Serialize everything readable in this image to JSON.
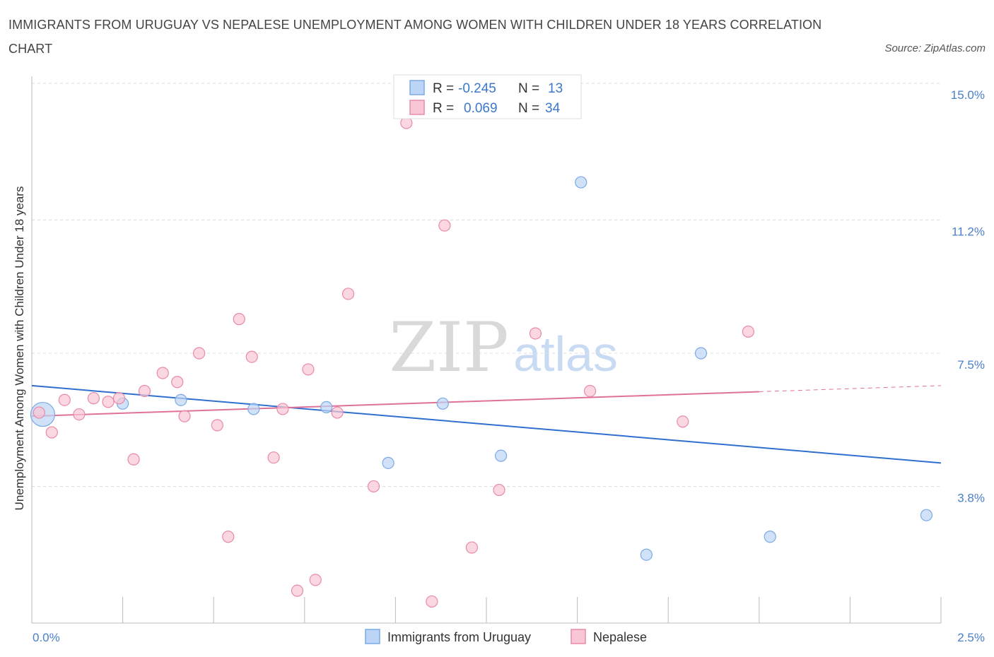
{
  "title": "IMMIGRANTS FROM URUGUAY VS NEPALESE UNEMPLOYMENT AMONG WOMEN WITH CHILDREN UNDER 18 YEARS CORRELATION CHART",
  "source": "Source: ZipAtlas.com",
  "watermark": {
    "zip": "ZIP",
    "atlas": "atlas"
  },
  "colors": {
    "blue": "#7aaae6",
    "blue_fill": "#bcd4f5",
    "blue_line": "#2f6fce",
    "pink": "#e88aa6",
    "pink_fill": "#f8c6d4",
    "pink_line": "#e0729a",
    "tick_label": "#4a7fc9"
  },
  "legend_top": [
    {
      "r_label": "R =",
      "r_value": "-0.245",
      "n_label": "N =",
      "n_value": "13",
      "color": "blue"
    },
    {
      "r_label": "R =",
      "r_value": "0.069",
      "n_label": "N =",
      "n_value": "34",
      "color": "pink"
    }
  ],
  "legend_bottom": [
    {
      "label": "Immigrants from Uruguay",
      "color": "blue"
    },
    {
      "label": "Nepalese",
      "color": "pink"
    }
  ],
  "chart_data": {
    "type": "scatter",
    "title": "IMMIGRANTS FROM URUGUAY VS NEPALESE UNEMPLOYMENT AMONG WOMEN WITH CHILDREN UNDER 18 YEARS CORRELATION CHART",
    "xlabel": "",
    "ylabel": "Unemployment Among Women with Children Under 18 years",
    "xlim": [
      0,
      2.5
    ],
    "ylim": [
      0,
      15.0
    ],
    "x_tick_labels": [
      "0.0%",
      "2.5%"
    ],
    "y_ticks": [
      3.8,
      7.5,
      11.2,
      15.0
    ],
    "y_tick_labels": [
      "3.8%",
      "7.5%",
      "11.2%",
      "15.0%"
    ],
    "grid": true,
    "series": [
      {
        "name": "Immigrants from Uruguay",
        "color": "blue",
        "points": [
          {
            "x": 0.03,
            "y": 5.8,
            "big": true
          },
          {
            "x": 0.25,
            "y": 6.1
          },
          {
            "x": 0.41,
            "y": 6.2
          },
          {
            "x": 0.61,
            "y": 5.95
          },
          {
            "x": 0.81,
            "y": 6.0
          },
          {
            "x": 0.98,
            "y": 4.45
          },
          {
            "x": 1.13,
            "y": 6.1
          },
          {
            "x": 1.29,
            "y": 4.65
          },
          {
            "x": 1.51,
            "y": 12.25
          },
          {
            "x": 1.69,
            "y": 1.9
          },
          {
            "x": 1.84,
            "y": 7.5
          },
          {
            "x": 2.03,
            "y": 2.4
          },
          {
            "x": 2.46,
            "y": 3.0
          }
        ],
        "trend": {
          "x": [
            0,
            2.5
          ],
          "y": [
            6.6,
            4.45
          ],
          "dashed_from": null
        }
      },
      {
        "name": "Nepalese",
        "color": "pink",
        "points": [
          {
            "x": 0.02,
            "y": 5.85
          },
          {
            "x": 0.055,
            "y": 5.3
          },
          {
            "x": 0.09,
            "y": 6.2
          },
          {
            "x": 0.13,
            "y": 5.8
          },
          {
            "x": 0.17,
            "y": 6.25
          },
          {
            "x": 0.21,
            "y": 6.15
          },
          {
            "x": 0.24,
            "y": 6.25
          },
          {
            "x": 0.28,
            "y": 4.55
          },
          {
            "x": 0.31,
            "y": 6.45
          },
          {
            "x": 0.36,
            "y": 6.95
          },
          {
            "x": 0.4,
            "y": 6.7
          },
          {
            "x": 0.42,
            "y": 5.75
          },
          {
            "x": 0.46,
            "y": 7.5
          },
          {
            "x": 0.51,
            "y": 5.5
          },
          {
            "x": 0.54,
            "y": 2.4
          },
          {
            "x": 0.57,
            "y": 8.45
          },
          {
            "x": 0.605,
            "y": 7.4
          },
          {
            "x": 0.665,
            "y": 4.6
          },
          {
            "x": 0.69,
            "y": 5.95
          },
          {
            "x": 0.73,
            "y": 0.9
          },
          {
            "x": 0.76,
            "y": 7.05
          },
          {
            "x": 0.78,
            "y": 1.2
          },
          {
            "x": 0.84,
            "y": 5.85
          },
          {
            "x": 0.87,
            "y": 9.15
          },
          {
            "x": 0.94,
            "y": 3.8
          },
          {
            "x": 1.03,
            "y": 13.9
          },
          {
            "x": 1.1,
            "y": 0.6
          },
          {
            "x": 1.135,
            "y": 11.05
          },
          {
            "x": 1.21,
            "y": 2.1
          },
          {
            "x": 1.285,
            "y": 3.7
          },
          {
            "x": 1.385,
            "y": 8.05
          },
          {
            "x": 1.535,
            "y": 6.45
          },
          {
            "x": 1.79,
            "y": 5.6
          },
          {
            "x": 1.97,
            "y": 8.1
          }
        ],
        "trend": {
          "x": [
            0,
            2.5
          ],
          "y": [
            5.75,
            6.6
          ],
          "dashed_from": 2.0
        }
      }
    ]
  }
}
